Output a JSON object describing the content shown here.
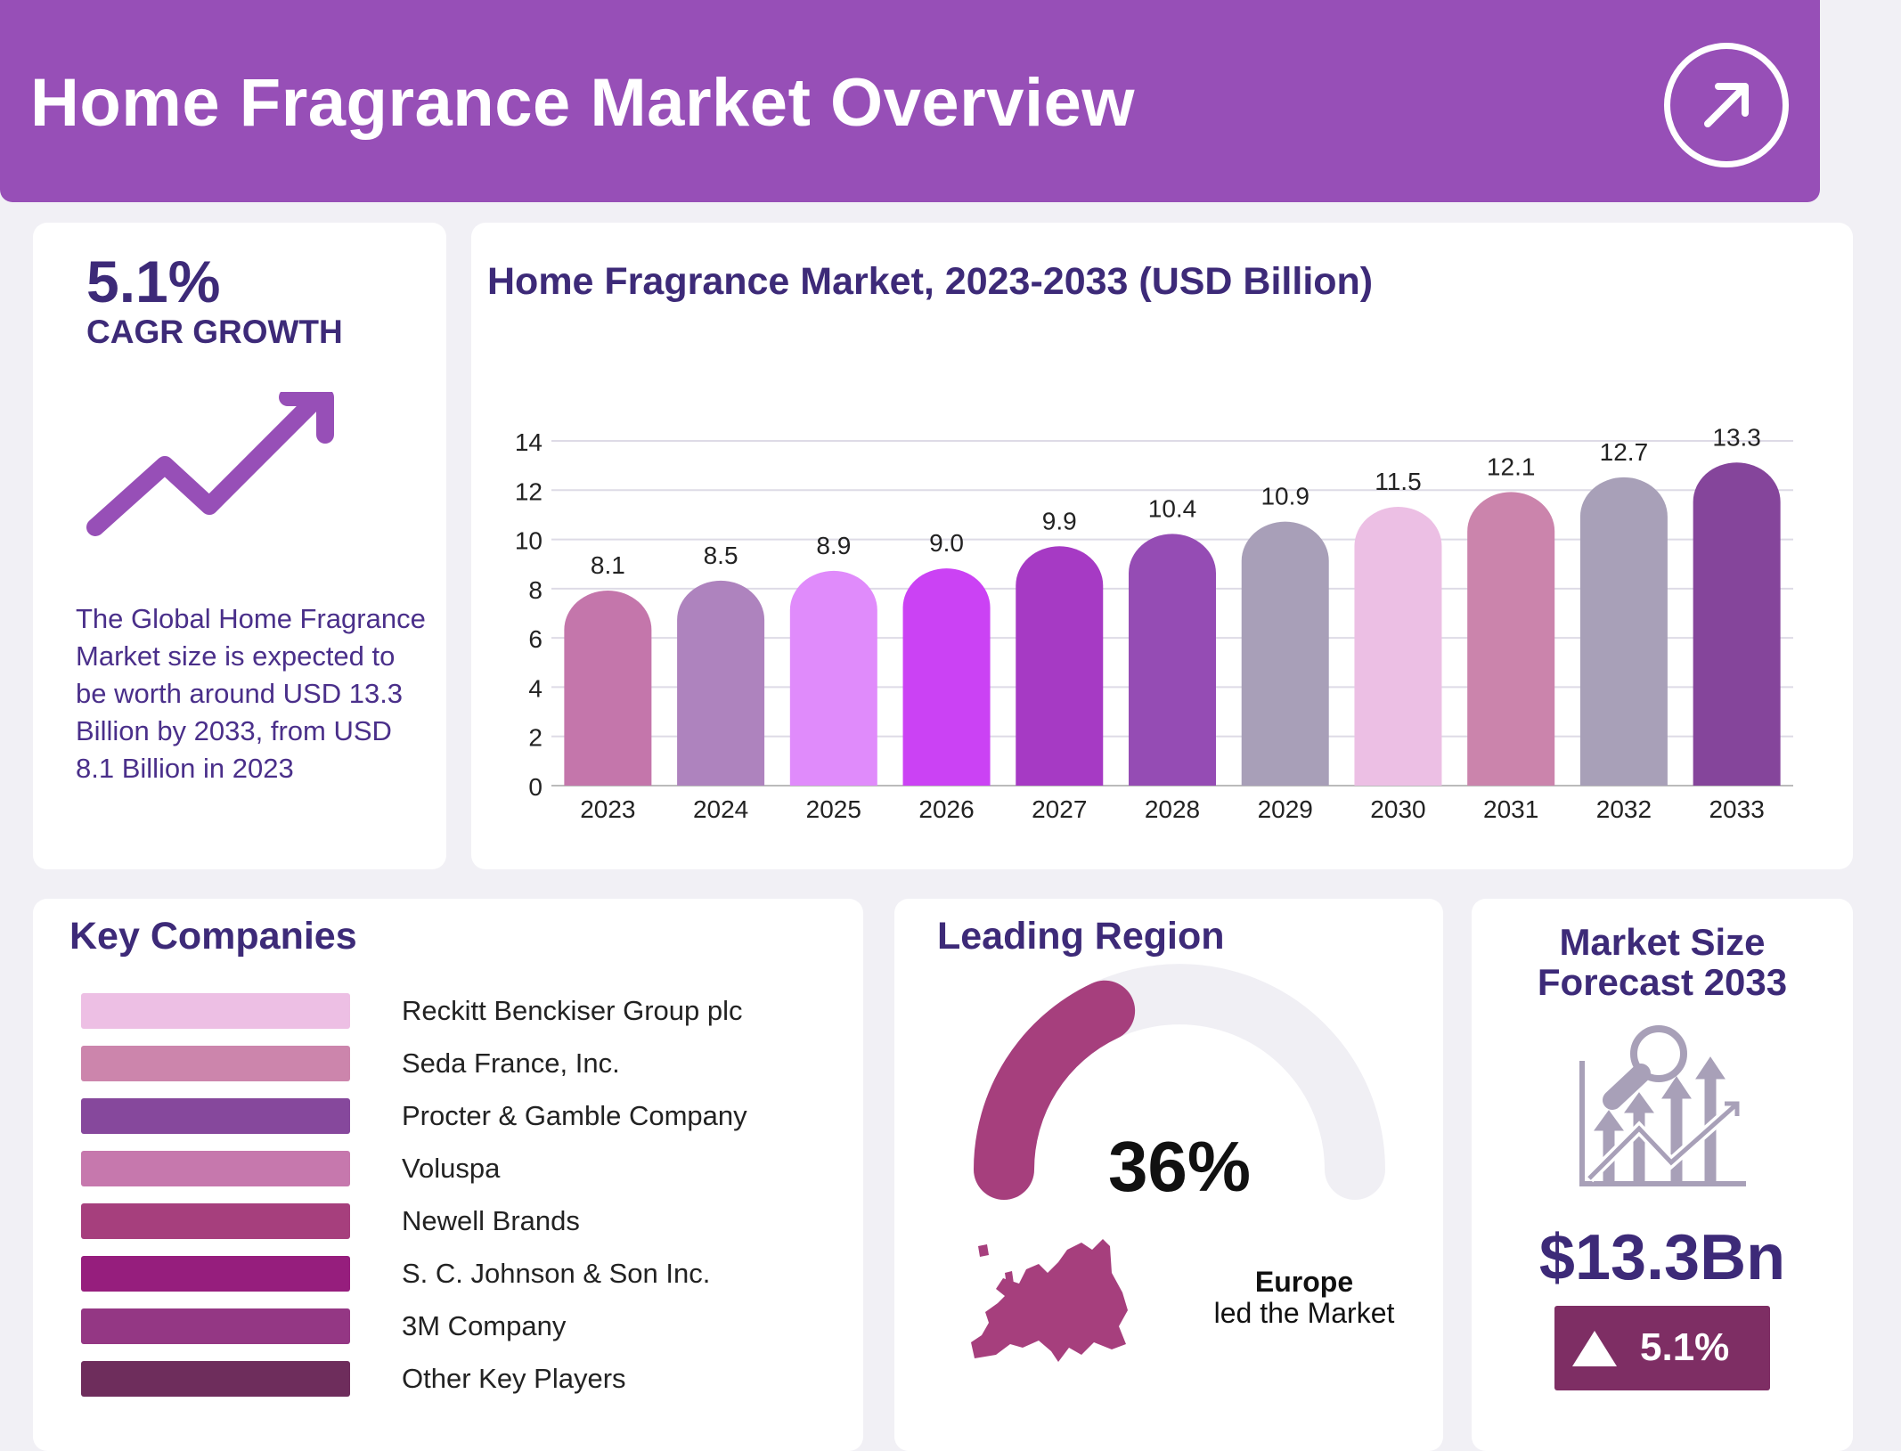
{
  "header": {
    "title": "Home Fragrance Market Overview",
    "icon": "arrow-up-right-circle-icon"
  },
  "summary": {
    "cagr_value": "5.1%",
    "cagr_label": "CAGR GROWTH",
    "icon": "trend-up-arrow-icon",
    "description": "The Global Home Fragrance Market size is expected to be worth around USD 13.3 Billion by 2033, from USD 8.1 Billion in 2023"
  },
  "chart_data": {
    "type": "bar",
    "title": "Home Fragrance Market, 2023-2033 (USD Billion)",
    "categories": [
      "2023",
      "2024",
      "2025",
      "2026",
      "2027",
      "2028",
      "2029",
      "2030",
      "2031",
      "2032",
      "2033"
    ],
    "values": [
      8.1,
      8.5,
      8.9,
      9.0,
      9.9,
      10.4,
      10.9,
      11.5,
      12.1,
      12.7,
      13.3
    ],
    "value_labels": [
      "8.1",
      "8.5",
      "8.9",
      "9.0",
      "9.9",
      "10.4",
      "10.9",
      "11.5",
      "12.1",
      "12.7",
      "13.3"
    ],
    "colors": [
      "#c476ab",
      "#ae83be",
      "#e08bfb",
      "#cb42f4",
      "#a63ac4",
      "#954cb4",
      "#a89fb8",
      "#ecbfe4",
      "#cb84ac",
      "#a8a0b8",
      "#85459b"
    ],
    "yticks": [
      "0",
      "2",
      "4",
      "6",
      "8",
      "10",
      "12",
      "14"
    ],
    "ylim": [
      0,
      14
    ],
    "grid": true,
    "xlabel": "",
    "ylabel": ""
  },
  "companies": {
    "title": "Key Companies",
    "items": [
      {
        "name": "Reckitt Benckiser Group plc",
        "color": "#edbfe4"
      },
      {
        "name": "Seda France, Inc.",
        "color": "#cc85ac"
      },
      {
        "name": "Procter & Gamble Company",
        "color": "#86489c"
      },
      {
        "name": "Voluspa",
        "color": "#c678ad"
      },
      {
        "name": "Newell Brands",
        "color": "#a63f7d"
      },
      {
        "name": "S. C. Johnson & Son Inc.",
        "color": "#961e7d"
      },
      {
        "name": "3M Company",
        "color": "#943784"
      },
      {
        "name": "Other Key Players",
        "color": "#6e2d5c"
      }
    ]
  },
  "region": {
    "title": "Leading Region",
    "share": "36%",
    "share_value": 36,
    "name": "Europe",
    "caption": "led the Market",
    "accent": "#a63f7d",
    "icon": "europe-map-icon"
  },
  "forecast": {
    "title_line1": "Market Size",
    "title_line2": "Forecast 2033",
    "value": "$13.3Bn",
    "growth": "5.1%",
    "icon": "growth-analysis-icon",
    "badge_color": "#7e2e64"
  }
}
